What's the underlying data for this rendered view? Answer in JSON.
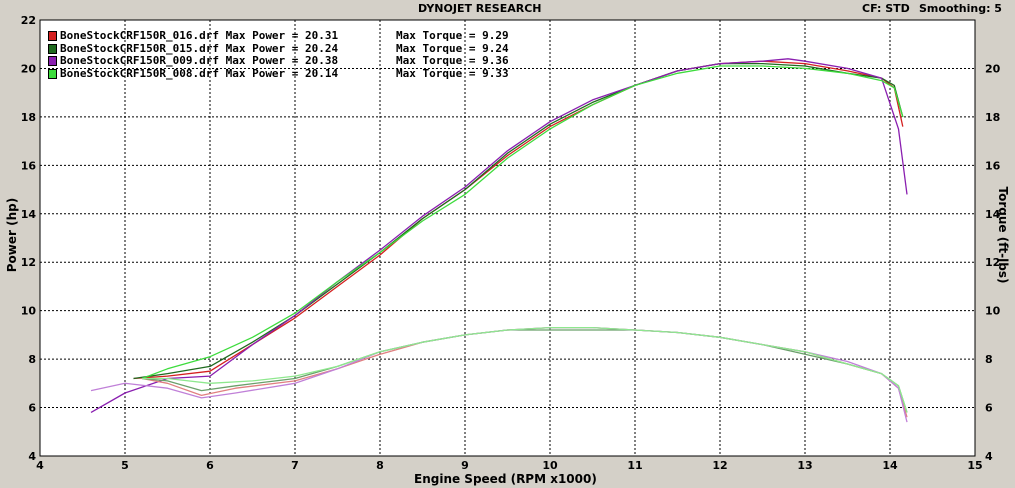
{
  "header": {
    "title": "DYNOJET RESEARCH",
    "cf_label": "CF: STD",
    "smoothing_label": "Smoothing: 5"
  },
  "legend": [
    {
      "name": "BoneStockCRF150R_016.drf",
      "power": "Max Power = 20.31",
      "torque": "Max Torque = 9.29",
      "color": "#d42020"
    },
    {
      "name": "BoneStockCRF150R_015.drf",
      "power": "Max Power = 20.24",
      "torque": "Max Torque = 9.24",
      "color": "#1f6b1f"
    },
    {
      "name": "BoneStockCRF150R_009.drf",
      "power": "Max Power = 20.38",
      "torque": "Max Torque = 9.36",
      "color": "#8a1fb0"
    },
    {
      "name": "BoneStockCRF150R_008.drf",
      "power": "Max Power = 20.14",
      "torque": "Max Torque = 9.33",
      "color": "#3ddc3d"
    }
  ],
  "chart_data": {
    "type": "line",
    "title": "DYNOJET RESEARCH",
    "xlabel": "Engine Speed (RPM x1000)",
    "ylabel": "Power (hp)",
    "y2label": "Torque (ft-lbs)",
    "xlim": [
      4,
      15
    ],
    "ylim": [
      4,
      22
    ],
    "y2lim": [
      4,
      22
    ],
    "xticks": [
      4,
      5,
      6,
      7,
      8,
      9,
      10,
      11,
      12,
      13,
      14,
      15
    ],
    "yticks": [
      4,
      6,
      8,
      10,
      12,
      14,
      16,
      18,
      20,
      22
    ],
    "y2ticks": [
      4,
      6,
      8,
      10,
      12,
      14,
      16,
      18,
      20
    ],
    "grid": true,
    "legend_position": "top-left",
    "series": [
      {
        "name": "BoneStockCRF150R_016.drf",
        "quantity": "power",
        "color": "#d42020",
        "x": [
          5.1,
          5.5,
          6.0,
          6.5,
          7.0,
          7.5,
          8.0,
          8.5,
          9.0,
          9.5,
          10.0,
          10.5,
          11.0,
          11.5,
          12.0,
          12.5,
          13.0,
          13.5,
          13.9,
          14.05,
          14.15
        ],
        "y": [
          7.2,
          7.3,
          7.5,
          8.6,
          9.7,
          11.0,
          12.3,
          13.8,
          15.0,
          16.4,
          17.6,
          18.5,
          19.3,
          19.9,
          20.2,
          20.3,
          20.2,
          19.9,
          19.6,
          19.2,
          17.6
        ]
      },
      {
        "name": "BoneStockCRF150R_015.drf",
        "quantity": "power",
        "color": "#1f6b1f",
        "x": [
          5.1,
          5.5,
          6.0,
          6.5,
          7.0,
          7.5,
          8.0,
          8.5,
          9.0,
          9.5,
          10.0,
          10.5,
          11.0,
          11.5,
          12.0,
          12.5,
          13.0,
          13.5,
          13.9,
          14.05,
          14.15
        ],
        "y": [
          7.2,
          7.4,
          7.7,
          8.7,
          9.8,
          11.1,
          12.4,
          13.8,
          15.0,
          16.5,
          17.7,
          18.6,
          19.3,
          19.9,
          20.2,
          20.2,
          20.1,
          19.8,
          19.6,
          19.3,
          18.0
        ]
      },
      {
        "name": "BoneStockCRF150R_009.drf",
        "quantity": "power",
        "color": "#8a1fb0",
        "x": [
          4.6,
          5.0,
          5.5,
          6.0,
          6.5,
          7.0,
          7.5,
          8.0,
          8.5,
          9.0,
          9.5,
          10.0,
          10.5,
          11.0,
          11.5,
          12.0,
          12.5,
          12.8,
          13.0,
          13.5,
          13.9,
          14.1,
          14.2
        ],
        "y": [
          5.8,
          6.6,
          7.2,
          7.3,
          8.6,
          9.8,
          11.2,
          12.5,
          13.9,
          15.1,
          16.6,
          17.8,
          18.7,
          19.3,
          19.9,
          20.2,
          20.3,
          20.4,
          20.3,
          20.0,
          19.6,
          17.5,
          14.8
        ]
      },
      {
        "name": "BoneStockCRF150R_008.drf",
        "quantity": "power",
        "color": "#3ddc3d",
        "x": [
          5.2,
          5.5,
          6.0,
          6.5,
          7.0,
          7.5,
          8.0,
          8.5,
          9.0,
          9.5,
          10.0,
          10.5,
          11.0,
          11.5,
          12.0,
          12.5,
          13.0,
          13.5,
          13.9,
          14.05,
          14.15
        ],
        "y": [
          7.2,
          7.6,
          8.1,
          8.9,
          9.9,
          11.2,
          12.4,
          13.7,
          14.8,
          16.3,
          17.5,
          18.5,
          19.3,
          19.8,
          20.1,
          20.1,
          20.0,
          19.8,
          19.5,
          19.2,
          18.0
        ]
      },
      {
        "name": "BoneStockCRF150R_016.drf",
        "quantity": "torque",
        "color": "#e08080",
        "x": [
          5.2,
          5.5,
          5.9,
          6.3,
          7.0,
          7.5,
          8.0,
          8.5,
          9.0,
          9.5,
          10.0,
          10.5,
          11.0,
          11.5,
          12.0,
          12.5,
          13.0,
          13.5,
          13.9,
          14.1,
          14.2
        ],
        "y": [
          7.2,
          7.0,
          6.5,
          6.8,
          7.1,
          7.6,
          8.2,
          8.7,
          9.0,
          9.2,
          9.3,
          9.3,
          9.2,
          9.1,
          8.9,
          8.6,
          8.3,
          7.8,
          7.4,
          6.8,
          5.6
        ]
      },
      {
        "name": "BoneStockCRF150R_015.drf",
        "quantity": "torque",
        "color": "#6aa06a",
        "x": [
          5.2,
          5.5,
          5.9,
          6.3,
          7.0,
          7.5,
          8.0,
          8.5,
          9.0,
          9.5,
          10.0,
          10.5,
          11.0,
          11.5,
          12.0,
          12.5,
          13.0,
          13.5,
          13.9,
          14.1,
          14.2
        ],
        "y": [
          7.2,
          7.1,
          6.7,
          6.9,
          7.2,
          7.7,
          8.3,
          8.7,
          9.0,
          9.2,
          9.2,
          9.2,
          9.2,
          9.1,
          8.9,
          8.6,
          8.2,
          7.8,
          7.4,
          6.9,
          5.8
        ]
      },
      {
        "name": "BoneStockCRF150R_009.drf",
        "quantity": "torque",
        "color": "#c080d8",
        "x": [
          4.6,
          5.0,
          5.5,
          5.9,
          6.3,
          7.0,
          7.5,
          8.0,
          8.5,
          9.0,
          9.5,
          10.0,
          10.5,
          11.0,
          11.5,
          12.0,
          12.5,
          13.0,
          13.5,
          13.9,
          14.1,
          14.2
        ],
        "y": [
          6.7,
          7.0,
          6.8,
          6.4,
          6.6,
          7.0,
          7.6,
          8.3,
          8.7,
          9.0,
          9.2,
          9.3,
          9.3,
          9.2,
          9.1,
          8.9,
          8.6,
          8.3,
          7.9,
          7.4,
          6.8,
          5.4
        ]
      },
      {
        "name": "BoneStockCRF150R_008.drf",
        "quantity": "torque",
        "color": "#8ee88e",
        "x": [
          5.2,
          5.5,
          6.0,
          6.5,
          7.0,
          7.5,
          8.0,
          8.5,
          9.0,
          9.5,
          10.0,
          10.5,
          11.0,
          11.5,
          12.0,
          12.5,
          13.0,
          13.5,
          13.9,
          14.1,
          14.2
        ],
        "y": [
          7.2,
          7.2,
          7.0,
          7.1,
          7.3,
          7.7,
          8.3,
          8.7,
          9.0,
          9.2,
          9.3,
          9.3,
          9.2,
          9.1,
          8.9,
          8.6,
          8.3,
          7.8,
          7.4,
          6.9,
          5.8
        ]
      }
    ]
  }
}
